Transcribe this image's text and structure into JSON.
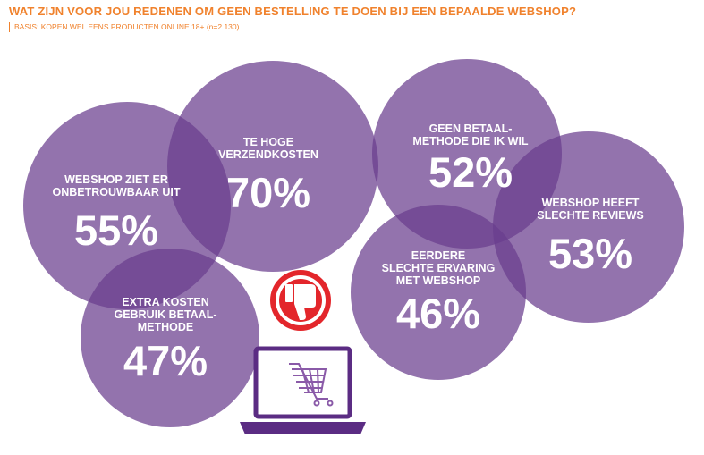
{
  "title": "WAT ZIJN VOOR JOU REDENEN OM GEEN BESTELLING TE DOEN BIJ EEN BEPAALDE WEBSHOP?",
  "subtitle": "BASIS: KOPEN WEL EENS PRODUCTEN ONLINE 18+ (n=2.130)",
  "colors": {
    "accent": "#f0822d",
    "bubble": "#6a3d8e",
    "thumb": "#e3262b",
    "laptop": "#5b2c83"
  },
  "icons": [
    "thumbs-down-icon",
    "laptop-icon",
    "shopping-cart-icon"
  ],
  "chart_data": {
    "type": "bubble",
    "unit": "%",
    "items": [
      {
        "label": [
          "TE HOGE",
          "VERZENDKOSTEN"
        ],
        "value": 70,
        "display": "70%"
      },
      {
        "label": [
          "WEBSHOP ZIET ER",
          "ONBETROUWBAAR UIT"
        ],
        "value": 55,
        "display": "55%"
      },
      {
        "label": [
          "WEBSHOP HEEFT",
          "SLECHTE REVIEWS"
        ],
        "value": 53,
        "display": "53%"
      },
      {
        "label": [
          "GEEN BETAAL-",
          "METHODE DIE IK WIL"
        ],
        "value": 52,
        "display": "52%"
      },
      {
        "label": [
          "EXTRA KOSTEN",
          "GEBRUIK BETAAL-",
          "METHODE"
        ],
        "value": 47,
        "display": "47%"
      },
      {
        "label": [
          "EERDERE",
          "SLECHTE ERVARING",
          "MET WEBSHOP"
        ],
        "value": 46,
        "display": "46%"
      }
    ]
  }
}
